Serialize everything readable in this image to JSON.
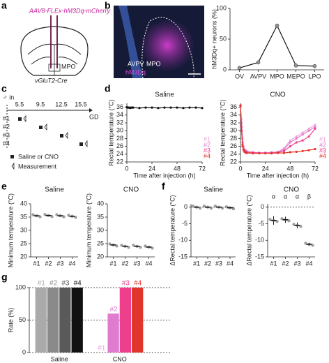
{
  "panel_labels": [
    "a",
    "b",
    "c",
    "d",
    "e",
    "f",
    "g"
  ],
  "diagram_a": {
    "virus": "AAV8-FLEx-hM3Dq-mCherry",
    "region": "MPO",
    "mouse": "vGluT2-Cre"
  },
  "image_b": {
    "left_region": "AVPV",
    "right_region": "MPO",
    "stain": "hM3Dq"
  },
  "timeline_c": {
    "start": "♂ in",
    "ticks": [
      "5.5",
      "9.5",
      "12.5",
      "15.5"
    ],
    "axis": "GD",
    "rows": [
      "#1",
      "#2",
      "#3",
      "#4"
    ],
    "legend": [
      "Saline or CNO",
      "Measurement"
    ]
  },
  "chart_data": [
    {
      "type": "line",
      "y_label": "hM3Dq+ neurons (%)",
      "categories": [
        "OV",
        "AVPV",
        "MPO",
        "MEPO",
        "LPO"
      ],
      "values": [
        3,
        12,
        72,
        7,
        6
      ],
      "color": "#111111",
      "ylim": [
        0,
        100
      ],
      "yticks": [
        0,
        50,
        100
      ]
    },
    {
      "type": "line",
      "title": "Saline",
      "y_label": "Rectal temperature (°C)",
      "x_label": "Time after injection (h)",
      "x": [
        0,
        1,
        2,
        3,
        4,
        5,
        6,
        12,
        18,
        24,
        30,
        36,
        42,
        48,
        54,
        60,
        66,
        72
      ],
      "series": [
        {
          "name": "Saline",
          "color": "#111111",
          "values": [
            36,
            35.9,
            35.9,
            35.8,
            35.9,
            35.9,
            35.9,
            35.8,
            35.9,
            35.9,
            35.8,
            35.9,
            35.9,
            35.9,
            35.8,
            35.9,
            35.9,
            35.8
          ]
        }
      ],
      "xlim": [
        0,
        72
      ],
      "xticks": [
        0,
        24,
        48,
        72
      ],
      "ylim": [
        22,
        37
      ],
      "yticks": [
        22,
        24,
        26,
        28,
        30,
        32,
        34,
        36
      ]
    },
    {
      "type": "line",
      "title": "CNO",
      "y_label": "Rectal temperature (°C)",
      "x_label": "Time after injection (h)",
      "x": [
        0,
        1,
        2,
        3,
        4,
        5,
        6,
        12,
        18,
        24,
        30,
        36,
        42,
        48,
        54,
        60,
        66,
        72
      ],
      "series": [
        {
          "name": "#1",
          "color": "#eea6dc",
          "values": [
            36.4,
            33,
            28,
            26,
            25.2,
            25,
            24.8,
            24.5,
            24.4,
            24.4,
            24.5,
            24.6,
            25.5,
            27.5,
            28.5,
            29.5,
            30.5,
            31.5
          ]
        },
        {
          "name": "#2",
          "color": "#e07cd0",
          "values": [
            36.3,
            32,
            27,
            25.5,
            25,
            24.8,
            24.6,
            24.4,
            24.3,
            24.3,
            24.4,
            24.5,
            25.2,
            27,
            28,
            29,
            30,
            31
          ]
        },
        {
          "name": "#3",
          "color": "#ee3f8c",
          "values": [
            36.2,
            31,
            26.5,
            25.2,
            24.8,
            24.6,
            24.5,
            24.4,
            24.3,
            24.3,
            24.3,
            24.4,
            24.8,
            26,
            27,
            27.5,
            28.5,
            30.5
          ]
        },
        {
          "name": "#4",
          "color": "#e0352a",
          "values": [
            36.5,
            30,
            26,
            25,
            24.6,
            24.4,
            24.3,
            24.2,
            24.2,
            24.2,
            24.2,
            24.3,
            24.3,
            24.5,
            24.6,
            24.8,
            25,
            25.3
          ]
        }
      ],
      "xlim": [
        0,
        72
      ],
      "xticks": [
        0,
        24,
        48,
        72
      ],
      "ylim": [
        22,
        37
      ],
      "yticks": [
        22,
        24,
        26,
        28,
        30,
        32,
        34,
        36
      ]
    },
    {
      "type": "dot",
      "title": "Saline",
      "y_label": "Minimum temperature (°C)",
      "categories": [
        "#1",
        "#2",
        "#3",
        "#4"
      ],
      "values": [
        35.5,
        35.6,
        35.5,
        35.3
      ],
      "color": "#777777",
      "ylim": [
        20,
        40
      ],
      "yticks": [
        20,
        25,
        30,
        35,
        40
      ]
    },
    {
      "type": "dot",
      "title": "CNO",
      "y_label": "Minimum temperature (°C)",
      "categories": [
        "#1",
        "#2",
        "#3",
        "#4"
      ],
      "values": [
        24.5,
        24,
        24,
        23.7
      ],
      "color": "#777777",
      "ylim": [
        20,
        40
      ],
      "yticks": [
        20,
        25,
        30,
        35,
        40
      ]
    },
    {
      "type": "dot",
      "title": "Saline",
      "y_label": "ΔRectal temperature (°C)",
      "categories": [
        "#1",
        "#2",
        "#3",
        "#4"
      ],
      "values": [
        0,
        0,
        0,
        -0.2
      ],
      "color": "#777777",
      "ylim": [
        -15,
        1
      ],
      "yticks": [
        -15,
        -10,
        -5,
        0
      ],
      "zero_line": true
    },
    {
      "type": "dot",
      "title": "CNO",
      "y_label": "ΔRectal temperature (°C)",
      "categories": [
        "#1",
        "#2",
        "#3",
        "#4"
      ],
      "values": [
        -4,
        -3.8,
        -5.5,
        -11.2
      ],
      "errors": [
        1.3,
        0.9,
        0.9,
        0.5
      ],
      "annotations": [
        "α",
        "α",
        "α",
        "β"
      ],
      "color": "#777777",
      "ylim": [
        -15,
        1
      ],
      "yticks": [
        -15,
        -10,
        -5,
        0
      ],
      "zero_line": true
    },
    {
      "type": "bar",
      "y_label": "Rate (%)",
      "categories": [
        "Saline",
        "CNO"
      ],
      "series": [
        {
          "name": "#1",
          "colors": [
            "#aaaaaa",
            "#eea6dc"
          ],
          "values": [
            100,
            0
          ]
        },
        {
          "name": "#2",
          "colors": [
            "#8a8a8a",
            "#e07cd0"
          ],
          "values": [
            100,
            60
          ]
        },
        {
          "name": "#3",
          "colors": [
            "#5a5a5a",
            "#ee3f8c"
          ],
          "values": [
            100,
            100
          ]
        },
        {
          "name": "#4",
          "colors": [
            "#111111",
            "#e0352a"
          ],
          "values": [
            100,
            100
          ]
        }
      ],
      "ylim": [
        0,
        100
      ],
      "yticks": [
        0,
        50,
        100
      ],
      "grid": true
    }
  ]
}
